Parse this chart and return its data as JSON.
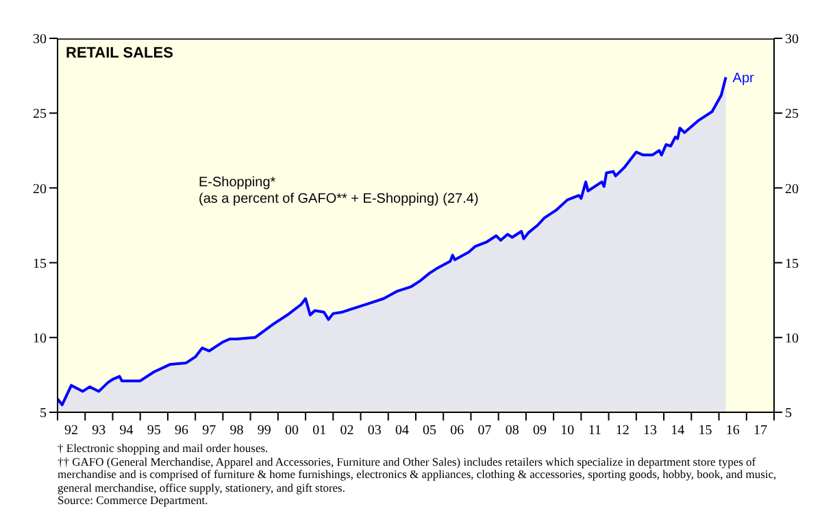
{
  "chart_data": {
    "type": "area",
    "title": "RETAIL SALES",
    "series": [
      {
        "color": "#0000ff",
        "x": [
          "1992-01",
          "1992-03",
          "1992-07",
          "1992-12",
          "1993-03",
          "1993-07",
          "1993-11",
          "1994-01",
          "1994-04",
          "1994-05",
          "1995-01",
          "1995-07",
          "1996-02",
          "1996-09",
          "1997-01",
          "1997-04",
          "1997-07",
          "1998-01",
          "1998-04",
          "1998-07",
          "1999-03",
          "1999-11",
          "2000-05",
          "2000-11",
          "2001-01",
          "2001-03",
          "2001-05",
          "2001-09",
          "2001-11",
          "2002-01",
          "2002-05",
          "2002-11",
          "2003-05",
          "2003-11",
          "2004-05",
          "2004-11",
          "2005-03",
          "2005-07",
          "2005-10",
          "2006-04",
          "2006-05",
          "2006-06",
          "2006-12",
          "2007-03",
          "2007-08",
          "2007-12",
          "2008-02",
          "2008-05",
          "2008-07",
          "2008-11",
          "2008-12",
          "2009-02",
          "2009-06",
          "2009-09",
          "2010-02",
          "2010-07",
          "2010-12",
          "2011-01",
          "2011-03",
          "2011-04",
          "2011-10",
          "2011-11",
          "2011-12",
          "2012-03",
          "2012-04",
          "2012-08",
          "2013-01",
          "2013-04",
          "2013-08",
          "2013-11",
          "2013-12",
          "2014-02",
          "2014-04",
          "2014-06",
          "2014-07",
          "2014-08",
          "2014-10",
          "2015-04",
          "2015-10",
          "2016-02",
          "2016-04"
        ],
        "values": [
          5.9,
          5.5,
          6.8,
          6.4,
          6.7,
          6.4,
          7.0,
          7.2,
          7.4,
          7.1,
          7.1,
          7.7,
          8.2,
          8.3,
          8.7,
          9.3,
          9.1,
          9.7,
          9.9,
          9.9,
          10.0,
          10.9,
          11.5,
          12.2,
          12.6,
          11.5,
          11.8,
          11.7,
          11.2,
          11.6,
          11.7,
          12.0,
          12.3,
          12.6,
          13.1,
          13.4,
          13.8,
          14.3,
          14.6,
          15.1,
          15.5,
          15.2,
          15.7,
          16.1,
          16.4,
          16.8,
          16.5,
          16.9,
          16.7,
          17.1,
          16.6,
          17.0,
          17.5,
          18.0,
          18.5,
          19.2,
          19.5,
          19.3,
          20.4,
          19.8,
          20.4,
          20.1,
          21.0,
          21.1,
          20.8,
          21.4,
          22.4,
          22.2,
          22.2,
          22.5,
          22.2,
          22.9,
          22.8,
          23.4,
          23.3,
          24.0,
          23.7,
          24.5,
          25.1,
          26.2,
          27.4
        ]
      }
    ],
    "xlim": [
      "1992",
      "2018"
    ],
    "xticks": [
      {
        "value": "1992",
        "label": null
      },
      {
        "value": "1992-07",
        "label": "92"
      },
      {
        "value": "1993",
        "label": null
      },
      {
        "value": "1993-07",
        "label": "93"
      },
      {
        "value": "1994",
        "label": null
      },
      {
        "value": "1994-07",
        "label": "94"
      },
      {
        "value": "1995",
        "label": null
      },
      {
        "value": "1995-07",
        "label": "95"
      },
      {
        "value": "1996",
        "label": null
      },
      {
        "value": "1996-07",
        "label": "96"
      },
      {
        "value": "1997",
        "label": null
      },
      {
        "value": "1997-07",
        "label": "97"
      },
      {
        "value": "1998",
        "label": null
      },
      {
        "value": "1998-07",
        "label": "98"
      },
      {
        "value": "1999",
        "label": null
      },
      {
        "value": "1999-07",
        "label": "99"
      },
      {
        "value": "2000",
        "label": null
      },
      {
        "value": "2000-07",
        "label": "00"
      },
      {
        "value": "2001",
        "label": null
      },
      {
        "value": "2001-07",
        "label": "01"
      },
      {
        "value": "2002",
        "label": null
      },
      {
        "value": "2002-07",
        "label": "02"
      },
      {
        "value": "2003",
        "label": null
      },
      {
        "value": "2003-07",
        "label": "03"
      },
      {
        "value": "2004",
        "label": null
      },
      {
        "value": "2004-07",
        "label": "04"
      },
      {
        "value": "2005",
        "label": null
      },
      {
        "value": "2005-07",
        "label": "05"
      },
      {
        "value": "2006",
        "label": null
      },
      {
        "value": "2006-07",
        "label": "06"
      },
      {
        "value": "2007",
        "label": null
      },
      {
        "value": "2007-07",
        "label": "07"
      },
      {
        "value": "2008",
        "label": null
      },
      {
        "value": "2008-07",
        "label": "08"
      },
      {
        "value": "2009",
        "label": null
      },
      {
        "value": "2009-07",
        "label": "09"
      },
      {
        "value": "2010",
        "label": null
      },
      {
        "value": "2010-07",
        "label": "10"
      },
      {
        "value": "2011",
        "label": null
      },
      {
        "value": "2011-07",
        "label": "11"
      },
      {
        "value": "2012",
        "label": null
      },
      {
        "value": "2012-07",
        "label": "12"
      },
      {
        "value": "2013",
        "label": null
      },
      {
        "value": "2013-07",
        "label": "13"
      },
      {
        "value": "2014",
        "label": null
      },
      {
        "value": "2014-07",
        "label": "14"
      },
      {
        "value": "2015",
        "label": null
      },
      {
        "value": "2015-07",
        "label": "15"
      },
      {
        "value": "2016",
        "label": null
      },
      {
        "value": "2016-07",
        "label": "16"
      },
      {
        "value": "2017",
        "label": null
      },
      {
        "value": "2017-07",
        "label": "17"
      },
      {
        "value": "2018",
        "label": null
      }
    ],
    "ylim": [
      5,
      30
    ],
    "yticks": [
      5,
      10,
      15,
      20,
      25,
      30
    ],
    "y2lim": [
      5,
      30
    ],
    "y2ticks": [
      5,
      10,
      15,
      20,
      25,
      30
    ],
    "annotations": [
      "E-Shopping*\n(as a percent of GAFO** + E-Shopping) (27.4)",
      {
        "text": "Apr",
        "x": "2016-04",
        "y": 27.4
      },
      "† Electronic shopping and mail order houses.",
      "†† GAFO (General Merchandise, Apparel and Accessories, Furniture and Other Sales) includes retailers which specialize in department store types of merchandise and is comprised of furniture & home furnishings, electronics & appliances, clothing & accessories, sporting goods, hobby, book, and music, general merchandise, office supply, stationery, and gift stores.",
      "Source: Commerce Department."
    ]
  }
}
